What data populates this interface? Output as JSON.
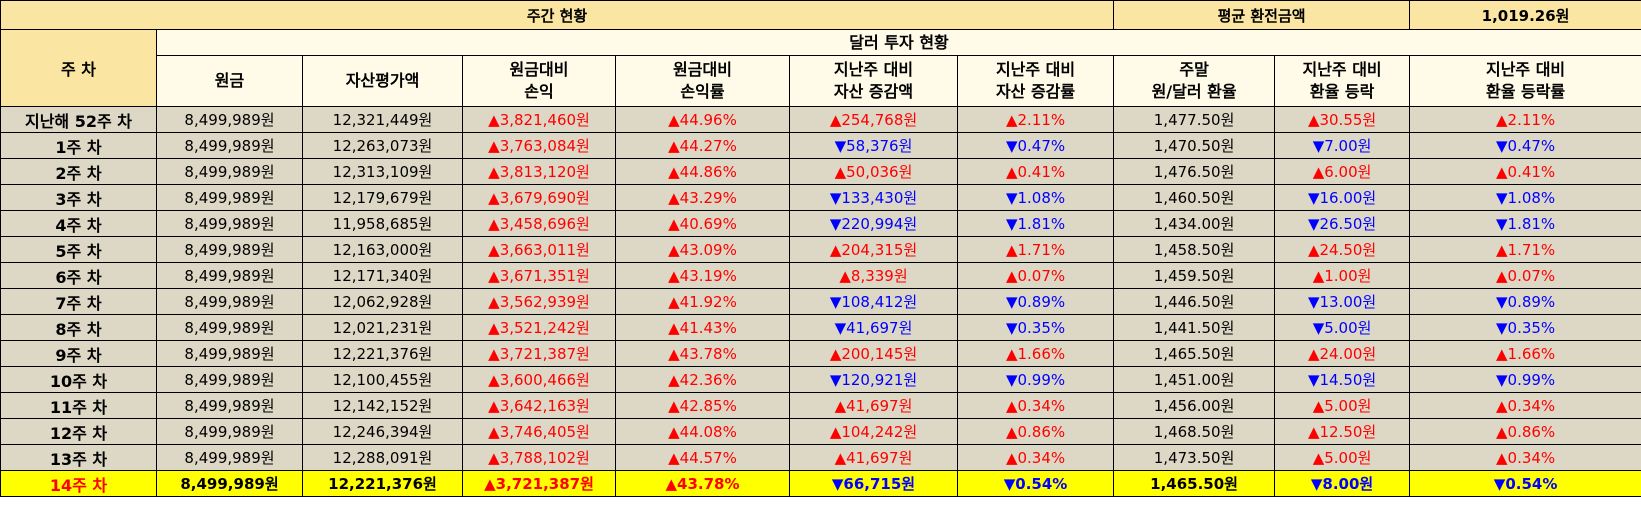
{
  "header": {
    "title": "주간 현황",
    "avg_label": "평균 환전금액",
    "avg_value": "1,019.26원",
    "week_col": "주 차",
    "group": "달러 투자 현황",
    "columns": [
      [
        "원금",
        ""
      ],
      [
        "자산평가액",
        ""
      ],
      [
        "원금대비",
        "손익"
      ],
      [
        "원금대비",
        "손익률"
      ],
      [
        "지난주 대비",
        "자산 증감액"
      ],
      [
        "지난주 대비",
        "자산 증감률"
      ],
      [
        "주말",
        "원/달러 환율"
      ],
      [
        "지난주 대비",
        "환율 등락"
      ],
      [
        "지난주 대비",
        "환율 등락률"
      ]
    ]
  },
  "colors": {
    "header_bg": "#fbe5a2",
    "row_bg": "#ddd8c6",
    "highlight_bg": "#ffff00",
    "up": "#ff0000",
    "down": "#0000ff"
  },
  "rows": [
    [
      "지난해 52주 차",
      "8,499,989원",
      "12,321,449원",
      "▲3,821,460원",
      "▲44.96%",
      "▲254,768원",
      "▲2.11%",
      "1,477.50원",
      "▲30.55원",
      "▲2.11%"
    ],
    [
      "1주 차",
      "8,499,989원",
      "12,263,073원",
      "▲3,763,084원",
      "▲44.27%",
      "▼58,376원",
      "▼0.47%",
      "1,470.50원",
      "▼7.00원",
      "▼0.47%"
    ],
    [
      "2주 차",
      "8,499,989원",
      "12,313,109원",
      "▲3,813,120원",
      "▲44.86%",
      "▲50,036원",
      "▲0.41%",
      "1,476.50원",
      "▲6.00원",
      "▲0.41%"
    ],
    [
      "3주 차",
      "8,499,989원",
      "12,179,679원",
      "▲3,679,690원",
      "▲43.29%",
      "▼133,430원",
      "▼1.08%",
      "1,460.50원",
      "▼16.00원",
      "▼1.08%"
    ],
    [
      "4주 차",
      "8,499,989원",
      "11,958,685원",
      "▲3,458,696원",
      "▲40.69%",
      "▼220,994원",
      "▼1.81%",
      "1,434.00원",
      "▼26.50원",
      "▼1.81%"
    ],
    [
      "5주 차",
      "8,499,989원",
      "12,163,000원",
      "▲3,663,011원",
      "▲43.09%",
      "▲204,315원",
      "▲1.71%",
      "1,458.50원",
      "▲24.50원",
      "▲1.71%"
    ],
    [
      "6주 차",
      "8,499,989원",
      "12,171,340원",
      "▲3,671,351원",
      "▲43.19%",
      "▲8,339원",
      "▲0.07%",
      "1,459.50원",
      "▲1.00원",
      "▲0.07%"
    ],
    [
      "7주 차",
      "8,499,989원",
      "12,062,928원",
      "▲3,562,939원",
      "▲41.92%",
      "▼108,412원",
      "▼0.89%",
      "1,446.50원",
      "▼13.00원",
      "▼0.89%"
    ],
    [
      "8주 차",
      "8,499,989원",
      "12,021,231원",
      "▲3,521,242원",
      "▲41.43%",
      "▼41,697원",
      "▼0.35%",
      "1,441.50원",
      "▼5.00원",
      "▼0.35%"
    ],
    [
      "9주 차",
      "8,499,989원",
      "12,221,376원",
      "▲3,721,387원",
      "▲43.78%",
      "▲200,145원",
      "▲1.66%",
      "1,465.50원",
      "▲24.00원",
      "▲1.66%"
    ],
    [
      "10주 차",
      "8,499,989원",
      "12,100,455원",
      "▲3,600,466원",
      "▲42.36%",
      "▼120,921원",
      "▼0.99%",
      "1,451.00원",
      "▼14.50원",
      "▼0.99%"
    ],
    [
      "11주 차",
      "8,499,989원",
      "12,142,152원",
      "▲3,642,163원",
      "▲42.85%",
      "▲41,697원",
      "▲0.34%",
      "1,456.00원",
      "▲5.00원",
      "▲0.34%"
    ],
    [
      "12주 차",
      "8,499,989원",
      "12,246,394원",
      "▲3,746,405원",
      "▲44.08%",
      "▲104,242원",
      "▲0.86%",
      "1,468.50원",
      "▲12.50원",
      "▲0.86%"
    ],
    [
      "13주 차",
      "8,499,989원",
      "12,288,091원",
      "▲3,788,102원",
      "▲44.57%",
      "▲41,697원",
      "▲0.34%",
      "1,473.50원",
      "▲5.00원",
      "▲0.34%"
    ],
    [
      "14주 차",
      "8,499,989원",
      "12,221,376원",
      "▲3,721,387원",
      "▲43.78%",
      "▼66,715원",
      "▼0.54%",
      "1,465.50원",
      "▼8.00원",
      "▼0.54%"
    ]
  ]
}
